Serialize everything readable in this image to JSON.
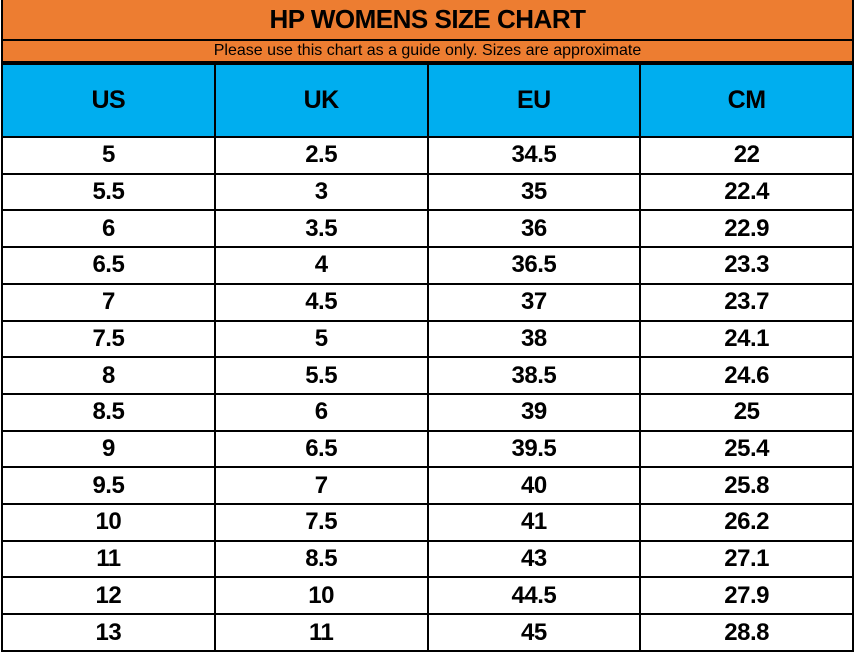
{
  "page": {
    "title": "HP WOMENS SIZE CHART",
    "subtitle": "Please use this chart as a guide only. Sizes are approximate"
  },
  "colors": {
    "banner_orange": "#ED7D31",
    "header_blue": "#00AEEF",
    "border_black": "#000000",
    "row_white": "#FFFFFF",
    "text_black": "#000000"
  },
  "chart_data": {
    "type": "table",
    "title": "HP WOMENS SIZE CHART",
    "note": "Please use this chart as a guide only. Sizes are approximate",
    "columns": [
      "US",
      "UK",
      "EU",
      "CM"
    ],
    "rows": [
      [
        "5",
        "2.5",
        "34.5",
        "22"
      ],
      [
        "5.5",
        "3",
        "35",
        "22.4"
      ],
      [
        "6",
        "3.5",
        "36",
        "22.9"
      ],
      [
        "6.5",
        "4",
        "36.5",
        "23.3"
      ],
      [
        "7",
        "4.5",
        "37",
        "23.7"
      ],
      [
        "7.5",
        "5",
        "38",
        "24.1"
      ],
      [
        "8",
        "5.5",
        "38.5",
        "24.6"
      ],
      [
        "8.5",
        "6",
        "39",
        "25"
      ],
      [
        "9",
        "6.5",
        "39.5",
        "25.4"
      ],
      [
        "9.5",
        "7",
        "40",
        "25.8"
      ],
      [
        "10",
        "7.5",
        "41",
        "26.2"
      ],
      [
        "11",
        "8.5",
        "43",
        "27.1"
      ],
      [
        "12",
        "10",
        "44.5",
        "27.9"
      ],
      [
        "13",
        "11",
        "45",
        "28.8"
      ]
    ]
  }
}
